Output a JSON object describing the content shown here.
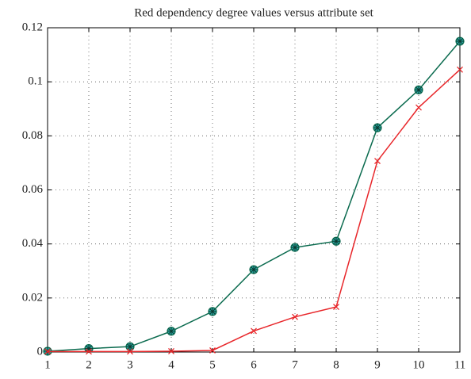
{
  "chart_data": {
    "type": "line",
    "title": "Red dependency degree values versus attribute set",
    "x": [
      1,
      2,
      3,
      4,
      5,
      6,
      7,
      8,
      9,
      10,
      11
    ],
    "series": [
      {
        "color": "#0b6b4f",
        "marker": "circle-star",
        "values": [
          0.0003,
          0.0013,
          0.002,
          0.0077,
          0.015,
          0.0305,
          0.0387,
          0.041,
          0.083,
          0.097,
          0.115
        ]
      },
      {
        "color": "#e8262a",
        "marker": "x",
        "values": [
          0.0002,
          0.0002,
          0.0002,
          0.0003,
          0.0006,
          0.0078,
          0.013,
          0.0167,
          0.0707,
          0.0905,
          0.1045
        ]
      }
    ],
    "xlim": [
      1,
      11
    ],
    "xticks": [
      1,
      2,
      3,
      4,
      5,
      6,
      7,
      8,
      9,
      10,
      11
    ],
    "ylim": [
      0,
      0.12
    ],
    "yticks": [
      0,
      0.02,
      0.04,
      0.06,
      0.08,
      0.1,
      0.12
    ],
    "grid": true
  }
}
